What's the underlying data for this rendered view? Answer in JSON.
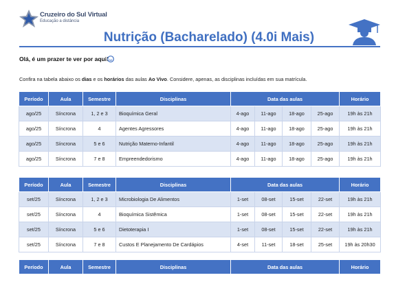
{
  "header": {
    "brand": "Cruzeiro do Sul Virtual",
    "brand_sub": "Educação a distância",
    "title": "Nutrição (Bacharelado) (4.0i Mais)"
  },
  "greeting": "Olá, é um prazer te ver por aqui!",
  "intro": [
    "Confira na tabela abaixo os ",
    "dias",
    " e os ",
    "horários",
    " das aulas ",
    "Ao Vivo",
    ". Considere, apenas, as disciplinas incluídas em sua matrícula."
  ],
  "tables": [
    {
      "columns": [
        "Período",
        "Aula",
        "Semestre",
        "Disciplinas",
        "Data das aulas",
        "Horário"
      ],
      "rows": [
        [
          "ago/25",
          "Síncrona",
          "1, 2 e 3",
          "Bioquímica Geral",
          "4-ago",
          "11-ago",
          "18-ago",
          "25-ago",
          "19h às 21h"
        ],
        [
          "ago/25",
          "Síncrona",
          "4",
          "Agentes Agressores",
          "4-ago",
          "11-ago",
          "18-ago",
          "25-ago",
          "19h às 21h"
        ],
        [
          "ago/25",
          "Síncrona",
          "5 e 6",
          "Nutrição Materno-Infantil",
          "4-ago",
          "11-ago",
          "18-ago",
          "25-ago",
          "19h às 21h"
        ],
        [
          "ago/25",
          "Síncrona",
          "7 e 8",
          "Empreendedorismo",
          "4-ago",
          "11-ago",
          "18-ago",
          "25-ago",
          "19h às 21h"
        ]
      ]
    },
    {
      "columns": [
        "Período",
        "Aula",
        "Semestre",
        "Disciplinas",
        "Data das aulas",
        "Horário"
      ],
      "rows": [
        [
          "set/25",
          "Síncrona",
          "1, 2 e 3",
          "Microbiologia De Alimentos",
          "1-set",
          "08-set",
          "15-set",
          "22-set",
          "19h às 21h"
        ],
        [
          "set/25",
          "Síncrona",
          "4",
          "Bioquímica Sistêmica",
          "1-set",
          "08-set",
          "15-set",
          "22-set",
          "19h às 21h"
        ],
        [
          "set/25",
          "Síncrona",
          "5 e 6",
          "Dietoterapia I",
          "1-set",
          "08-set",
          "15-set",
          "22-set",
          "19h às 21h"
        ],
        [
          "set/25",
          "Síncrona",
          "7 e 8",
          "Custos E Planejamento De Cardápios",
          "4-set",
          "11-set",
          "18-set",
          "25-set",
          "19h às 20h30"
        ]
      ]
    },
    {
      "columns": [
        "Período",
        "Aula",
        "Semestre",
        "Disciplinas",
        "Data das aulas",
        "Horário"
      ],
      "rows": []
    }
  ]
}
